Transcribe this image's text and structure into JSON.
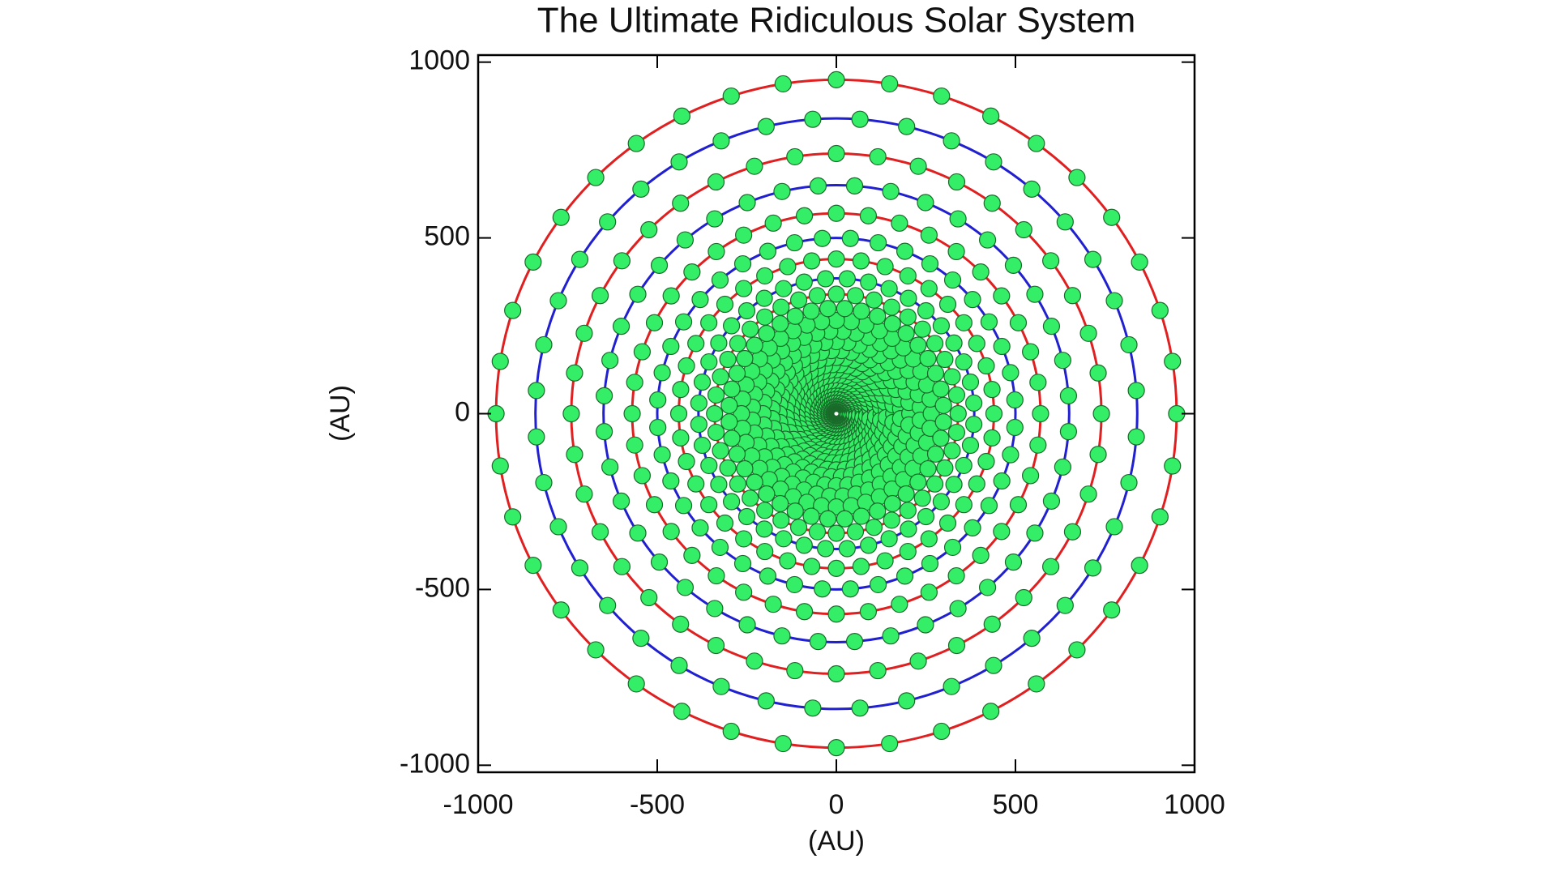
{
  "chart_data": {
    "type": "orbit",
    "title": "The Ultimate Ridiculous Solar System",
    "xlabel": "(AU)",
    "ylabel": "(AU)",
    "xlim": [
      -1000,
      1000
    ],
    "ylim": [
      -1020,
      1020
    ],
    "xticks": [
      -1000,
      -500,
      0,
      500,
      1000
    ],
    "yticks": [
      -1000,
      -500,
      0,
      500,
      1000
    ],
    "planet_color": "#33ee66",
    "orbits": [
      {
        "radius": 950,
        "color": "#e02020",
        "planets": 40
      },
      {
        "radius": 840,
        "color": "#2020d0",
        "planets": 40
      },
      {
        "radius": 740,
        "color": "#e02020",
        "planets": 40
      },
      {
        "radius": 650,
        "color": "#2020d0",
        "planets": 40
      },
      {
        "radius": 570,
        "color": "#e02020",
        "planets": 40
      },
      {
        "radius": 500,
        "color": "#2020d0",
        "planets": 40
      },
      {
        "radius": 440,
        "color": "#e02020",
        "planets": 40
      },
      {
        "radius": 385,
        "color": "#2020d0",
        "planets": 40
      },
      {
        "radius": 340,
        "color": "#e02020",
        "planets": 40
      },
      {
        "radius": 300,
        "color": "#2020d0",
        "planets": 40
      },
      {
        "radius": 265,
        "color": "#e02020",
        "planets": 40
      },
      {
        "radius": 235,
        "color": "#2020d0",
        "planets": 40
      },
      {
        "radius": 205,
        "color": "#e02020",
        "planets": 40
      },
      {
        "radius": 180,
        "color": "#2020d0",
        "planets": 40
      },
      {
        "radius": 160,
        "color": "#e02020",
        "planets": 40
      },
      {
        "radius": 140,
        "color": "#2020d0",
        "planets": 40
      },
      {
        "radius": 125,
        "color": "#e02020",
        "planets": 40
      },
      {
        "radius": 110,
        "color": "#2020d0",
        "planets": 40
      },
      {
        "radius": 95,
        "color": "#e02020",
        "planets": 40
      },
      {
        "radius": 85,
        "color": "#2020d0",
        "planets": 40
      },
      {
        "radius": 75,
        "color": "#e02020",
        "planets": 40
      },
      {
        "radius": 65,
        "color": "#2020d0",
        "planets": 40
      },
      {
        "radius": 57,
        "color": "#e02020",
        "planets": 40
      },
      {
        "radius": 50,
        "color": "#2020d0",
        "planets": 40
      },
      {
        "radius": 44,
        "color": "#e02020",
        "planets": 40
      },
      {
        "radius": 39,
        "color": "#2020d0",
        "planets": 40
      },
      {
        "radius": 34,
        "color": "#e02020",
        "planets": 40
      },
      {
        "radius": 30,
        "color": "#2020d0",
        "planets": 40
      }
    ]
  }
}
